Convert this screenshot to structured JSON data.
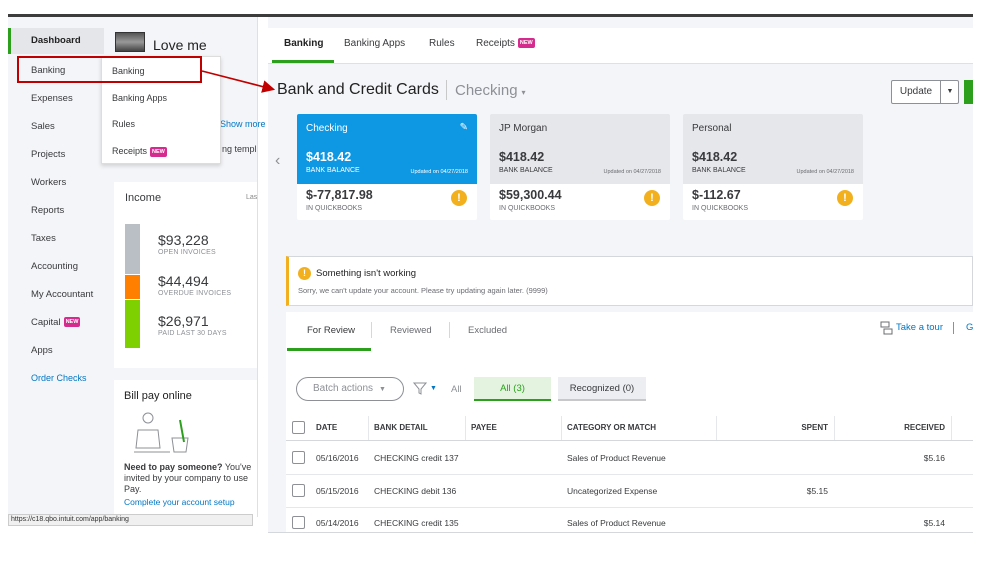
{
  "left": {
    "company_name": "Love me",
    "nav": [
      {
        "label": "Dashboard",
        "active": true
      },
      {
        "label": "Banking"
      },
      {
        "label": "Expenses"
      },
      {
        "label": "Sales"
      },
      {
        "label": "Projects"
      },
      {
        "label": "Workers"
      },
      {
        "label": "Reports"
      },
      {
        "label": "Taxes"
      },
      {
        "label": "Accounting"
      },
      {
        "label": "My Accountant"
      },
      {
        "label": "Capital",
        "badge": "NEW"
      },
      {
        "label": "Apps"
      },
      {
        "label": "Order Checks"
      }
    ],
    "flyout": [
      {
        "label": "Banking"
      },
      {
        "label": "Banking Apps"
      },
      {
        "label": "Rules"
      },
      {
        "label": "Receipts",
        "badge": "NEW"
      }
    ],
    "peek_link": "Show more",
    "peek_text": "ng templ",
    "income": {
      "title": "Income",
      "period": "Las",
      "items": [
        {
          "amount": "$93,228",
          "label": "OPEN INVOICES",
          "color": "#babec5"
        },
        {
          "amount": "$44,494",
          "label": "OVERDUE INVOICES",
          "color": "#ff8000"
        },
        {
          "amount": "$26,971",
          "label": "PAID LAST 30 DAYS",
          "color": "#7fd000"
        }
      ]
    },
    "bill_pay": {
      "title": "Bill pay online",
      "text_bold": "Need to pay someone?",
      "text": " You've invited by your company to use Pay.",
      "link": "Complete your account setup"
    },
    "status_url": "https://c18.qbo.intuit.com/app/banking"
  },
  "right": {
    "tabs": [
      {
        "label": "Banking",
        "active": true
      },
      {
        "label": "Banking Apps"
      },
      {
        "label": "Rules"
      },
      {
        "label": "Receipts",
        "badge": "NEW"
      }
    ],
    "title": "Bank and Credit Cards",
    "account_selector": "Checking",
    "update_label": "Update",
    "cards": [
      {
        "name": "Checking",
        "bank_amount": "$418.42",
        "bank_label": "BANK BALANCE",
        "updated": "Updated on 04/27/2018",
        "qb_amount": "$-77,817.98",
        "qb_label": "IN QUICKBOOKS",
        "selected": true
      },
      {
        "name": "JP Morgan",
        "bank_amount": "$418.42",
        "bank_label": "BANK BALANCE",
        "updated": "Updated on 04/27/2018",
        "qb_amount": "$59,300.44",
        "qb_label": "IN QUICKBOOKS"
      },
      {
        "name": "Personal",
        "bank_amount": "$418.42",
        "bank_label": "BANK BALANCE",
        "updated": "Updated on 04/27/2018",
        "qb_amount": "$-112.67",
        "qb_label": "IN QUICKBOOKS"
      }
    ],
    "alert": {
      "title": "Something isn't working",
      "text": "Sorry, we can't update your account. Please try updating again later. (9999)"
    },
    "review_tabs": [
      {
        "label": "For Review",
        "active": true
      },
      {
        "label": "Reviewed"
      },
      {
        "label": "Excluded"
      }
    ],
    "take_tour": "Take a tour",
    "tour_trail": "G",
    "batch_actions": "Batch actions",
    "filter_all": "All",
    "filter_tabs": [
      {
        "label": "All (3)",
        "active": true
      },
      {
        "label": "Recognized (0)"
      }
    ],
    "table": {
      "headers": [
        "DATE",
        "BANK DETAIL",
        "PAYEE",
        "CATEGORY OR MATCH",
        "SPENT",
        "RECEIVED"
      ],
      "rows": [
        {
          "date": "05/16/2016",
          "bank_detail": "CHECKING credit 137",
          "payee": "",
          "category": "Sales of Product Revenue",
          "spent": "",
          "received": "$5.16"
        },
        {
          "date": "05/15/2016",
          "bank_detail": "CHECKING debit 136",
          "payee": "",
          "category": "Uncategorized Expense",
          "spent": "$5.15",
          "received": ""
        },
        {
          "date": "05/14/2016",
          "bank_detail": "CHECKING credit 135",
          "payee": "",
          "category": "Sales of Product Revenue",
          "spent": "",
          "received": "$5.14"
        }
      ]
    }
  },
  "colors": {
    "accent_green": "#2ca01c",
    "selected_card": "#0e98e4",
    "warning": "#f2b01e",
    "annotation_red": "#c00000",
    "badge_pink": "#d52b8f"
  }
}
